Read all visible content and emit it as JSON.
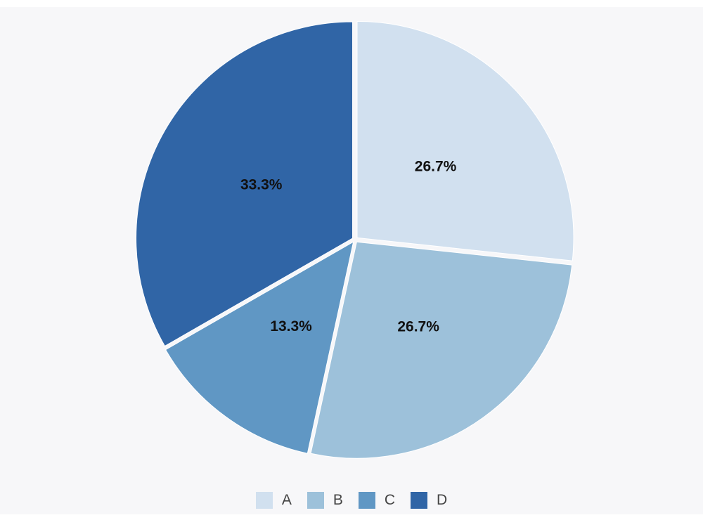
{
  "chart_data": {
    "type": "pie",
    "categories": [
      "A",
      "B",
      "C",
      "D"
    ],
    "values": [
      26.7,
      26.7,
      13.3,
      33.3
    ],
    "slice_labels": [
      "26.7%",
      "26.7%",
      "13.3%",
      "33.3%"
    ],
    "colors": [
      "#d1e0ef",
      "#9dc1da",
      "#6097c4",
      "#3065a6"
    ],
    "title": "",
    "legend_position": "bottom"
  }
}
